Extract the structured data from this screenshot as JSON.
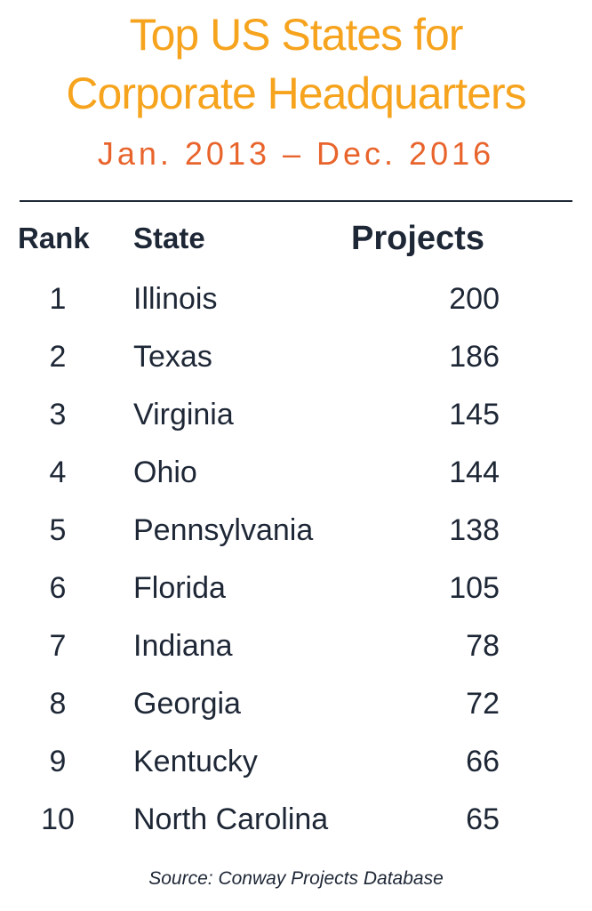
{
  "header": {
    "title_lines": [
      "Top US States for",
      "Corporate Headquarters"
    ],
    "subtitle": "Jan. 2013 – Dec. 2016"
  },
  "table": {
    "columns": [
      "Rank",
      "State",
      "Projects"
    ],
    "rows": [
      [
        1,
        "Illinois",
        200
      ],
      [
        2,
        "Texas",
        186
      ],
      [
        3,
        "Virginia",
        145
      ],
      [
        4,
        "Ohio",
        144
      ],
      [
        5,
        "Pennsylvania",
        138
      ],
      [
        6,
        "Florida",
        105
      ],
      [
        7,
        "Indiana",
        78
      ],
      [
        8,
        "Georgia",
        72
      ],
      [
        9,
        "Kentucky",
        66
      ],
      [
        10,
        "North Carolina",
        65
      ]
    ]
  },
  "footer": {
    "source": "Source: Conway Projects Database"
  }
}
